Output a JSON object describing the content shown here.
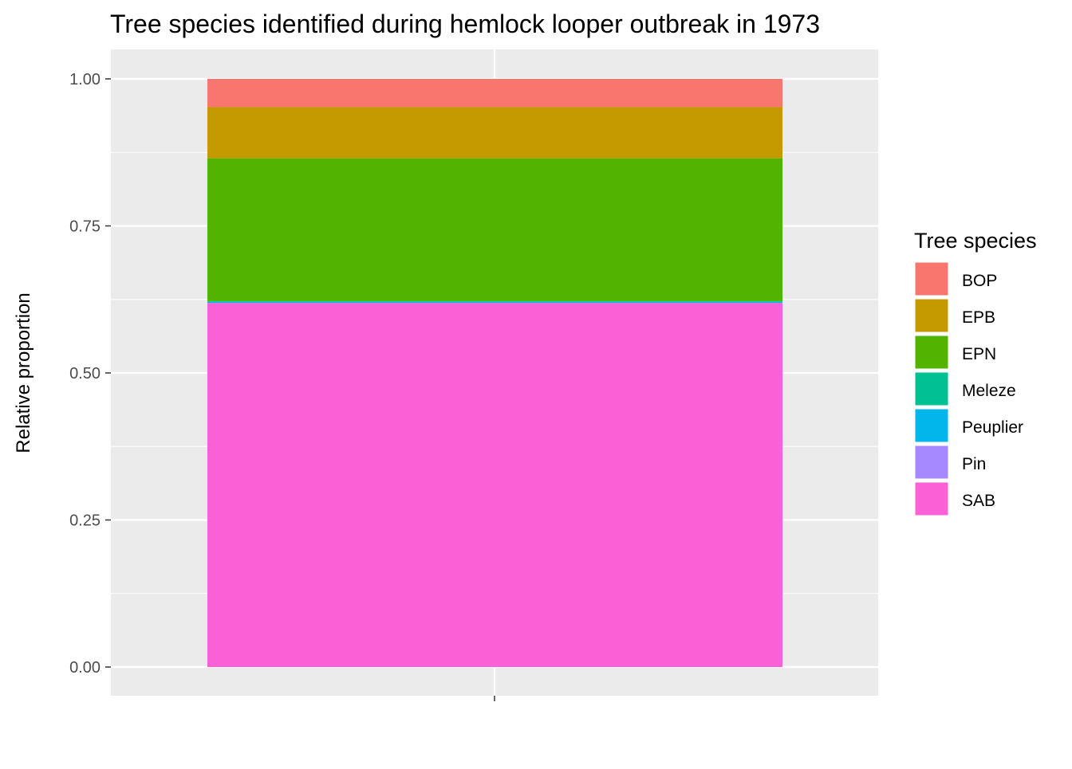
{
  "chart_data": {
    "type": "bar",
    "stacked": true,
    "title": "Tree species identified during hemlock looper outbreak in 1973",
    "xlabel": "",
    "ylabel": "Relative proportion",
    "categories": [
      ""
    ],
    "ylim": [
      0,
      1
    ],
    "yticks": [
      "0.00",
      "0.25",
      "0.50",
      "0.75",
      "1.00"
    ],
    "grid": true,
    "legend": {
      "title": "Tree species",
      "position": "right"
    },
    "series": [
      {
        "name": "BOP",
        "values": [
          0.048
        ],
        "color": "#F8766D"
      },
      {
        "name": "EPB",
        "values": [
          0.087
        ],
        "color": "#C49A00"
      },
      {
        "name": "EPN",
        "values": [
          0.243
        ],
        "color": "#53B400"
      },
      {
        "name": "Meleze",
        "values": [
          0.001
        ],
        "color": "#00C094"
      },
      {
        "name": "Peuplier",
        "values": [
          0.002
        ],
        "color": "#00B6EB"
      },
      {
        "name": "Pin",
        "values": [
          0.0
        ],
        "color": "#A58AFF"
      },
      {
        "name": "SAB",
        "values": [
          0.619
        ],
        "color": "#FB61D7"
      }
    ],
    "panel_background": "#EBEBEB",
    "gridline_color": "#FFFFFF"
  }
}
